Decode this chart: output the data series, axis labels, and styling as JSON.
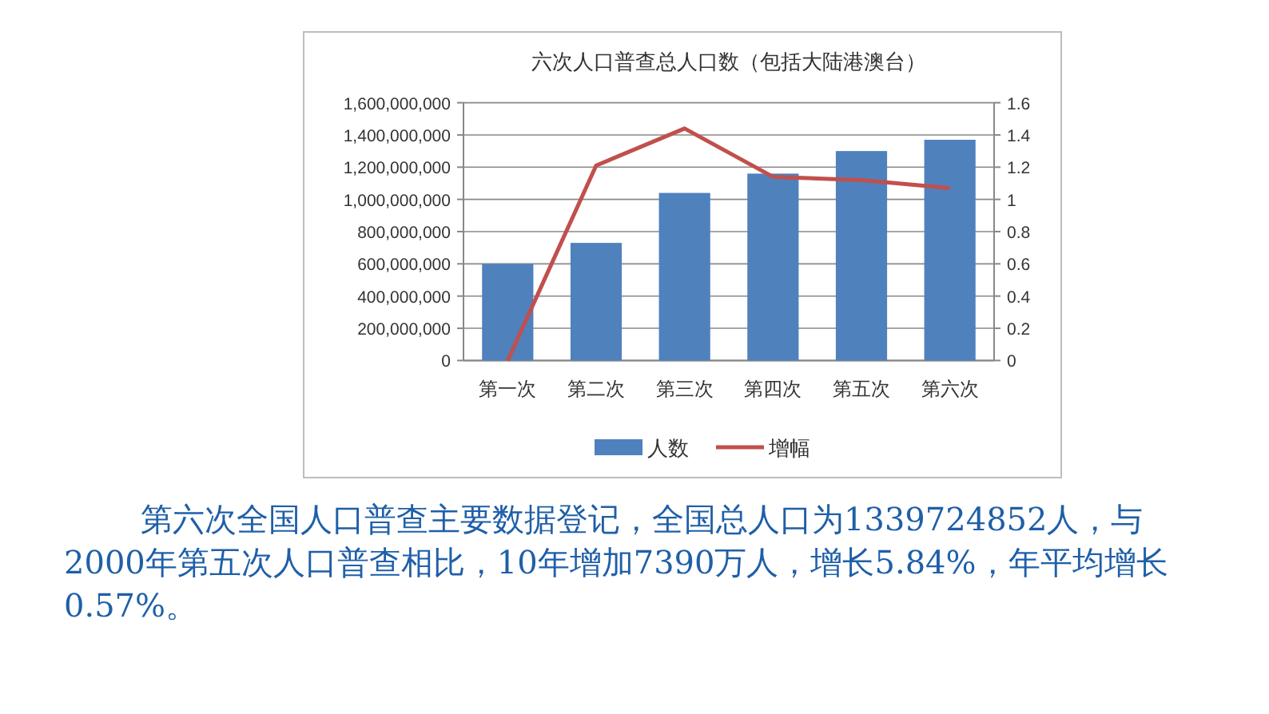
{
  "chart_data": {
    "type": "bar",
    "title": "六次人口普查总人口数（包括大陆港澳台）",
    "categories": [
      "第一次",
      "第二次",
      "第三次",
      "第四次",
      "第五次",
      "第六次"
    ],
    "series": [
      {
        "name": "人数",
        "color": "#4f81bd",
        "values": [
          600000000,
          730000000,
          1040000000,
          1160000000,
          1300000000,
          1370000000
        ]
      },
      {
        "name": "增幅",
        "type": "line",
        "axis": "y2",
        "color": "#c0504d",
        "values": [
          0,
          1.21,
          1.44,
          1.14,
          1.12,
          1.07
        ]
      }
    ],
    "ylim": [
      0,
      1600000000
    ],
    "yticks": [
      {
        "value": 0,
        "label": "0"
      },
      {
        "value": 200000000,
        "label": "200,000,000"
      },
      {
        "value": 400000000,
        "label": "400,000,000"
      },
      {
        "value": 600000000,
        "label": "600,000,000"
      },
      {
        "value": 800000000,
        "label": "800,000,000"
      },
      {
        "value": 1000000000,
        "label": "1,000,000,000"
      },
      {
        "value": 1200000000,
        "label": "1,200,000,000"
      },
      {
        "value": 1400000000,
        "label": "1,400,000,000"
      },
      {
        "value": 1600000000,
        "label": "1,600,000,000"
      }
    ],
    "y2lim": [
      0,
      1.6
    ],
    "y2ticks": [
      0,
      0.2,
      0.4,
      0.6,
      0.8,
      1,
      1.2,
      1.4,
      1.6
    ],
    "grid": "y",
    "legend": "bottom",
    "marker": "none",
    "line_style": "solid",
    "annotations": [
      "第六次全国人口普查主要数据登记，全国总人口为1339724852人，与2000年第五次人口普查相比，10年增加7390万人，增长5.84%，年平均增长0.57%。"
    ]
  }
}
